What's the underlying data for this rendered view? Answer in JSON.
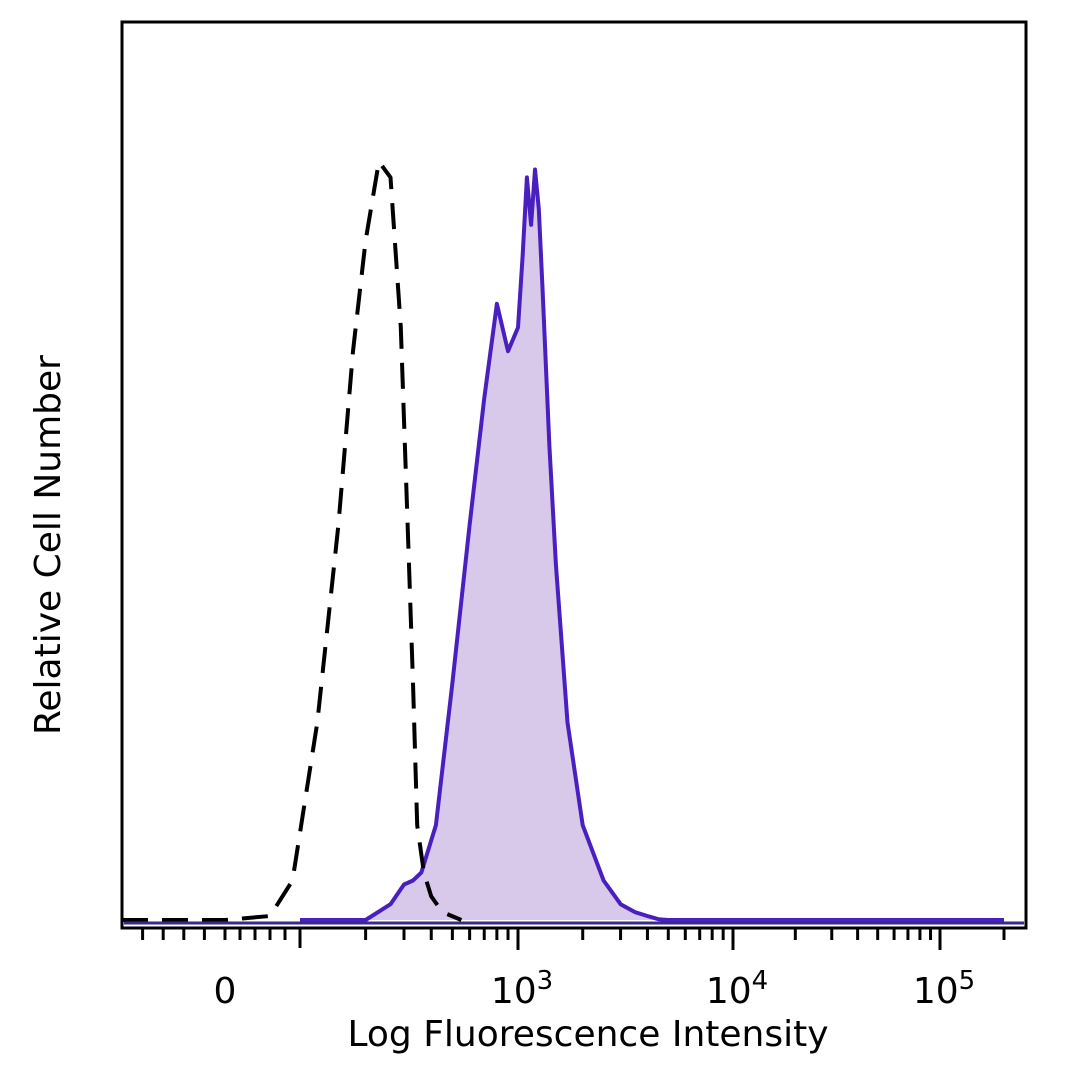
{
  "chart_data": {
    "type": "area",
    "xlabel": "Log Fluorescence Intensity",
    "ylabel": "Relative Cell Number",
    "x_scale": "biexponential (linear near 0, log above ~10^2)",
    "xlim": [
      -100,
      200000
    ],
    "ylim": [
      0,
      1.0
    ],
    "x_ticks": [
      {
        "value": 0,
        "label": "0"
      },
      {
        "value": 1000,
        "base": "10",
        "exp": "3"
      },
      {
        "value": 10000,
        "base": "10",
        "exp": "4"
      },
      {
        "value": 100000,
        "base": "10",
        "exp": "5"
      }
    ],
    "grid": false,
    "legend": "none",
    "series": [
      {
        "style": "dashed black line, unfilled",
        "color": "#000000",
        "x": [
          -100,
          0,
          60,
          90,
          120,
          150,
          175,
          200,
          230,
          260,
          290,
          310,
          330,
          345,
          370,
          400,
          450,
          550
        ],
        "y": [
          0,
          0,
          0.005,
          0.05,
          0.25,
          0.5,
          0.72,
          0.86,
          0.96,
          0.94,
          0.75,
          0.52,
          0.3,
          0.12,
          0.06,
          0.03,
          0.01,
          0
        ]
      },
      {
        "style": "solid purple line, filled lavender",
        "color": "#4a1fbf",
        "fill": "#d8c8ea",
        "x": [
          100,
          200,
          260,
          300,
          330,
          360,
          420,
          500,
          600,
          700,
          800,
          900,
          1000,
          1050,
          1100,
          1150,
          1200,
          1250,
          1300,
          1400,
          1500,
          1700,
          2000,
          2500,
          3000,
          3500,
          4000,
          4500,
          5000,
          200000
        ],
        "y": [
          0,
          0,
          0.02,
          0.045,
          0.05,
          0.06,
          0.12,
          0.3,
          0.5,
          0.66,
          0.78,
          0.72,
          0.75,
          0.84,
          0.94,
          0.88,
          0.95,
          0.9,
          0.8,
          0.6,
          0.45,
          0.25,
          0.12,
          0.05,
          0.02,
          0.01,
          0.005,
          0.001,
          0,
          0
        ]
      }
    ]
  }
}
